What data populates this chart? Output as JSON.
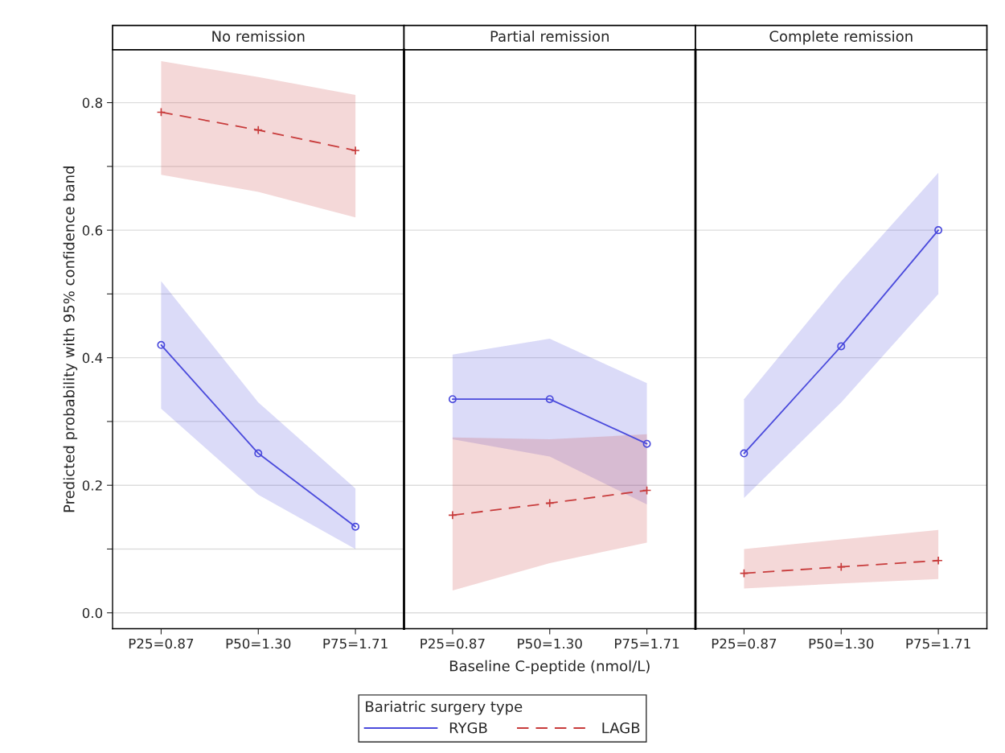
{
  "chart_data": [
    {
      "type": "line",
      "title": "No remission",
      "ylabel": "Predicted probability with 95% confidence band",
      "legend_title": "Bariatric surgery type",
      "legend": "bottom",
      "categories": [
        "P25=0.87",
        "P50=1.30",
        "P75=1.71"
      ],
      "series": [
        {
          "name": "RYGB",
          "color": "#4b4bdc",
          "values": [
            0.42,
            0.25,
            0.135
          ],
          "lower": [
            0.32,
            0.185,
            0.1
          ],
          "upper": [
            0.52,
            0.33,
            0.195
          ],
          "marker": "circle",
          "line_style": "solid"
        },
        {
          "name": "LAGB",
          "color": "#c83c3c",
          "values": [
            0.785,
            0.757,
            0.725
          ],
          "lower": [
            0.687,
            0.66,
            0.62
          ],
          "upper": [
            0.865,
            0.84,
            0.812
          ],
          "marker": "cross",
          "line_style": "dashed"
        }
      ],
      "ylim": [
        -0.025,
        0.883
      ],
      "yticks": [
        {
          "value": 0,
          "label": "0.0"
        },
        {
          "value": 0.1,
          "label": null
        },
        {
          "value": 0.2,
          "label": "0.2"
        },
        {
          "value": 0.3,
          "label": null
        },
        {
          "value": 0.4,
          "label": "0.4"
        },
        {
          "value": 0.5,
          "label": null
        },
        {
          "value": 0.6,
          "label": "0.6"
        },
        {
          "value": 0.7,
          "label": null
        },
        {
          "value": 0.8,
          "label": "0.8"
        }
      ],
      "grid": "y"
    },
    {
      "type": "line",
      "title": "Partial remission",
      "xlabel": "Baseline C-peptide (nmol/L)",
      "categories": [
        "P25=0.87",
        "P50=1.30",
        "P75=1.71"
      ],
      "series": [
        {
          "color": "#4b4bdc",
          "values": [
            0.335,
            0.335,
            0.265
          ],
          "lower": [
            0.272,
            0.245,
            0.17
          ],
          "upper": [
            0.405,
            0.43,
            0.36
          ],
          "marker": "circle",
          "line_style": "solid"
        },
        {
          "color": "#c83c3c",
          "values": [
            0.153,
            0.172,
            0.192
          ],
          "lower": [
            0.035,
            0.078,
            0.11
          ],
          "upper": [
            0.275,
            0.272,
            0.28
          ],
          "marker": "cross",
          "line_style": "dashed"
        }
      ],
      "ylim": [
        -0.025,
        0.883
      ],
      "yticks": [
        {
          "value": 0,
          "label": null
        },
        {
          "value": 0.2,
          "label": null
        },
        {
          "value": 0.4,
          "label": null
        },
        {
          "value": 0.6,
          "label": null
        },
        {
          "value": 0.8,
          "label": null
        }
      ],
      "grid": "y",
      "tick_labels": "x"
    },
    {
      "type": "line",
      "title": "Complete remission",
      "categories": [
        "P25=0.87",
        "P50=1.30",
        "P75=1.71"
      ],
      "series": [
        {
          "color": "#4b4bdc",
          "values": [
            0.25,
            0.418,
            0.6
          ],
          "lower": [
            0.18,
            0.33,
            0.5
          ],
          "upper": [
            0.335,
            0.52,
            0.69
          ],
          "marker": "circle",
          "line_style": "solid"
        },
        {
          "color": "#c83c3c",
          "values": [
            0.062,
            0.072,
            0.082
          ],
          "lower": [
            0.038,
            0.046,
            0.053
          ],
          "upper": [
            0.1,
            0.115,
            0.13
          ],
          "marker": "cross",
          "line_style": "dashed"
        }
      ],
      "ylim": [
        -0.025,
        0.883
      ],
      "yticks": [
        {
          "value": 0,
          "label": null
        },
        {
          "value": 0.2,
          "label": null
        },
        {
          "value": 0.4,
          "label": null
        },
        {
          "value": 0.6,
          "label": null
        },
        {
          "value": 0.8,
          "label": null
        }
      ],
      "grid": "y",
      "tick_labels": "x"
    }
  ]
}
